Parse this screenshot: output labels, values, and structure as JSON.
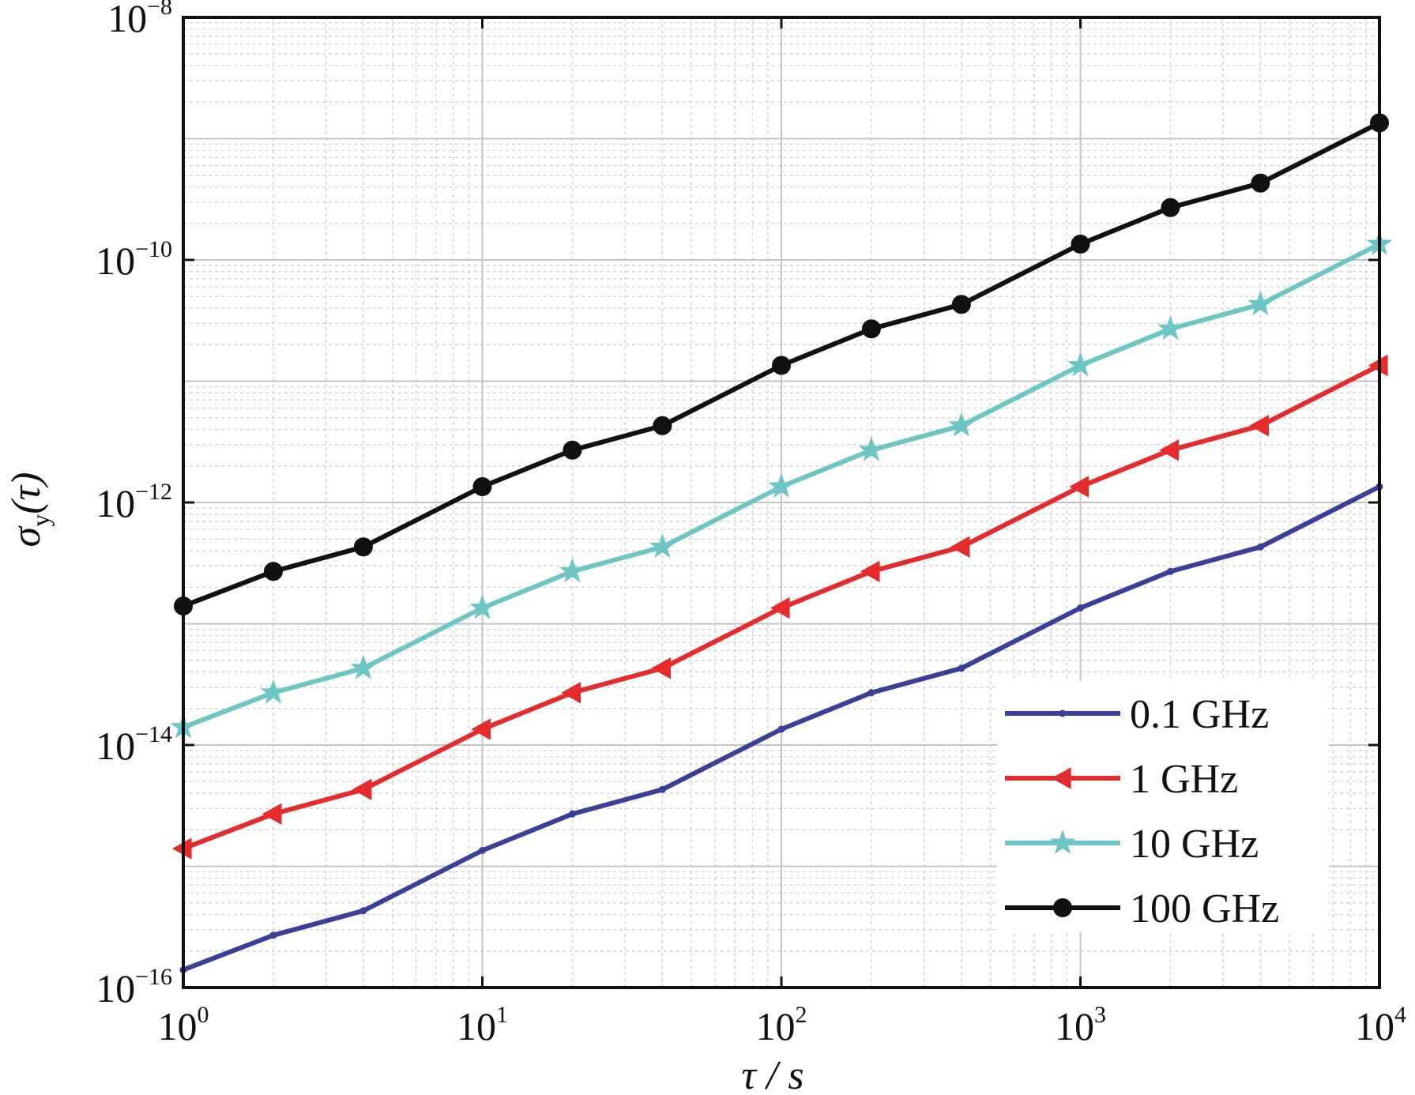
{
  "chart_data": {
    "type": "line",
    "xscale": "log",
    "yscale": "log",
    "xlim": [
      1,
      10000
    ],
    "ylim": [
      1e-16,
      1e-08
    ],
    "grid": true,
    "legend_position": "bottom-right",
    "xlabel": {
      "main": "τ / s"
    },
    "ylabel": {
      "sigma": "σ",
      "sub": "y",
      "arg": "(τ)"
    },
    "x_ticks": [
      {
        "base": "10",
        "exp": "0",
        "value": 1
      },
      {
        "base": "10",
        "exp": "1",
        "value": 10
      },
      {
        "base": "10",
        "exp": "2",
        "value": 100
      },
      {
        "base": "10",
        "exp": "3",
        "value": 1000
      },
      {
        "base": "10",
        "exp": "4",
        "value": 10000
      }
    ],
    "y_ticks": [
      {
        "base": "10",
        "exp": "−16",
        "value": 1e-16
      },
      {
        "base": "10",
        "exp": "−14",
        "value": 1e-14
      },
      {
        "base": "10",
        "exp": "−12",
        "value": 1e-12
      },
      {
        "base": "10",
        "exp": "−10",
        "value": 1e-10
      },
      {
        "base": "10",
        "exp": "−8",
        "value": 1e-08
      }
    ],
    "x": [
      1,
      2,
      4,
      10,
      20,
      40,
      100,
      200,
      400,
      1000,
      2000,
      4000,
      10000
    ],
    "series": [
      {
        "name": "0.1 GHz",
        "color": "#3a3f9a",
        "marker": "dot-small",
        "values": [
          1.4e-16,
          2.7e-16,
          4.3e-16,
          1.35e-15,
          2.7e-15,
          4.3e-15,
          1.35e-14,
          2.7e-14,
          4.3e-14,
          1.35e-13,
          2.7e-13,
          4.3e-13,
          1.35e-12
        ]
      },
      {
        "name": "1 GHz",
        "color": "#e52b2b",
        "marker": "triangle-left",
        "values": [
          1.4e-15,
          2.7e-15,
          4.3e-15,
          1.35e-14,
          2.7e-14,
          4.3e-14,
          1.35e-13,
          2.7e-13,
          4.3e-13,
          1.35e-12,
          2.7e-12,
          4.3e-12,
          1.35e-11
        ]
      },
      {
        "name": "10 GHz",
        "color": "#6ec6c4",
        "marker": "star",
        "values": [
          1.4e-14,
          2.7e-14,
          4.3e-14,
          1.35e-13,
          2.7e-13,
          4.3e-13,
          1.35e-12,
          2.7e-12,
          4.3e-12,
          1.35e-11,
          2.7e-11,
          4.3e-11,
          1.35e-10
        ]
      },
      {
        "name": "100 GHz",
        "color": "#111111",
        "marker": "circle",
        "values": [
          1.4e-13,
          2.7e-13,
          4.3e-13,
          1.35e-12,
          2.7e-12,
          4.3e-12,
          1.35e-11,
          2.7e-11,
          4.3e-11,
          1.35e-10,
          2.7e-10,
          4.3e-10,
          1.35e-09
        ]
      }
    ]
  }
}
